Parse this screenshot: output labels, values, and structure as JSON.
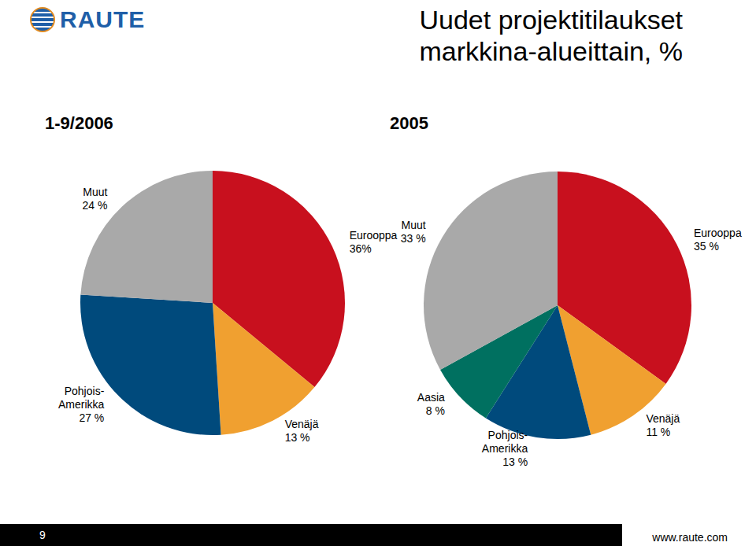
{
  "header": {
    "logo": "RAUTE",
    "title": "Uudet projektitilaukset\nmarkkina-alueittain, %"
  },
  "chart_data": [
    {
      "type": "pie",
      "title": "1-9/2006",
      "categories": [
        "Eurooppa",
        "Venäjä",
        "Pohjois-\nAmerikka",
        "Muut"
      ],
      "values": [
        36,
        13,
        27,
        24
      ],
      "value_labels": [
        "36%",
        "13 %",
        "27 %",
        "24 %"
      ],
      "colors": [
        "#c8101e",
        "#f0a030",
        "#004a7c",
        "#a9a9a9"
      ],
      "data_labels": true
    },
    {
      "type": "pie",
      "title": "2005",
      "categories": [
        "Eurooppa",
        "Venäjä",
        "Pohjois-\nAmerikka",
        "Aasia",
        "Muut"
      ],
      "values": [
        35,
        11,
        13,
        8,
        33
      ],
      "value_labels": [
        "35 %",
        "11 %",
        "13 %",
        "8 %",
        "33 %"
      ],
      "colors": [
        "#c8101e",
        "#f0a030",
        "#004a7c",
        "#007060",
        "#a9a9a9"
      ],
      "data_labels": true
    }
  ],
  "footer": {
    "page": 9,
    "url": "www.raute.com"
  }
}
